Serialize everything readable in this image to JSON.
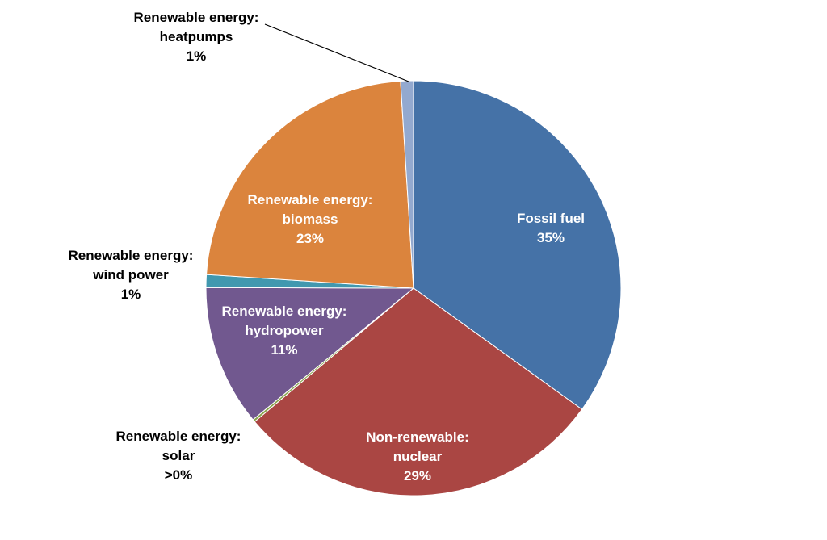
{
  "chart_data": {
    "type": "pie",
    "categories": [
      "Fossil fuel",
      "Non-renewable: nuclear",
      "Renewable energy: solar",
      "Renewable energy: hydropower",
      "Renewable energy: wind power",
      "Renewable energy: biomass",
      "Renewable energy: heatpumps"
    ],
    "values": [
      35,
      29,
      0.2,
      11,
      1,
      23,
      1
    ],
    "value_labels": [
      "35%",
      "29%",
      ">0%",
      "11%",
      "1%",
      "23%",
      "1%"
    ],
    "colors": [
      "#4572a7",
      "#aa4643",
      "#89a54e",
      "#71588f",
      "#4198af",
      "#db843d",
      "#93a9cf"
    ]
  }
}
